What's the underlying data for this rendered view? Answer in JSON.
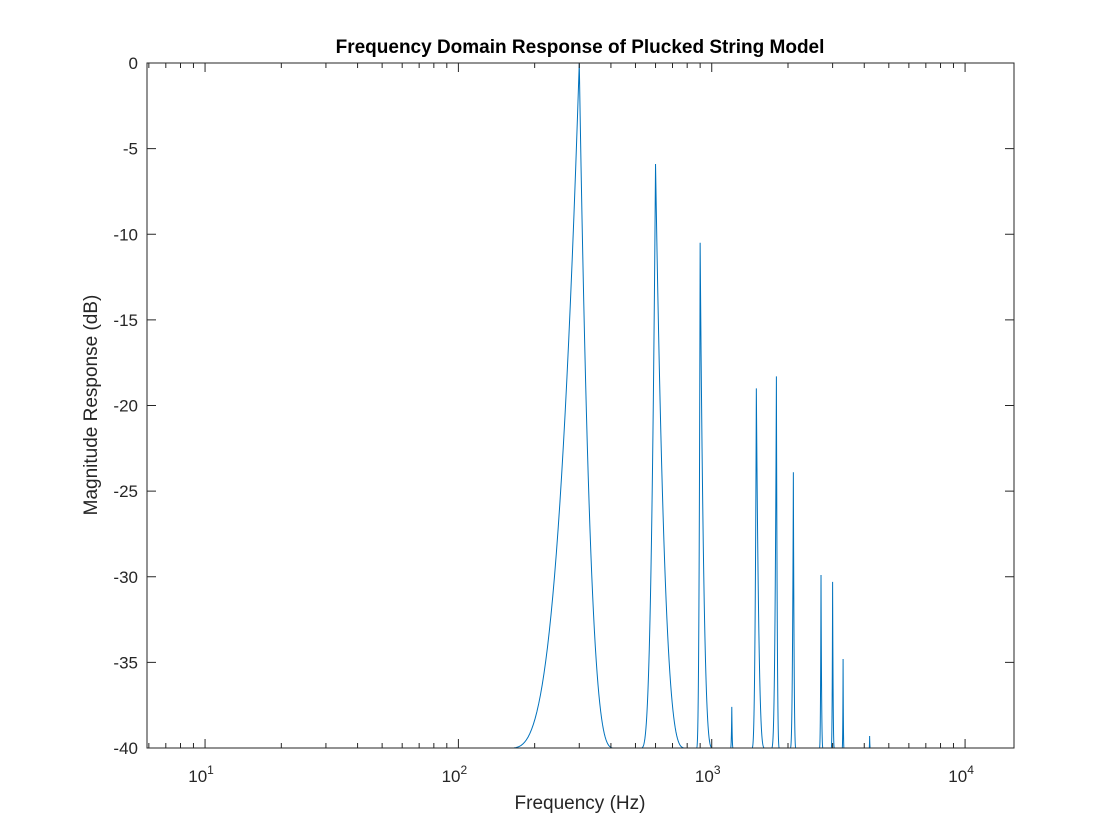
{
  "chart_data": {
    "type": "line",
    "title": "Frequency Domain Response of Plucked String Model",
    "xlabel": "Frequency (Hz)",
    "ylabel": "Magnitude Response (dB)",
    "xscale": "log",
    "xlim": [
      5.9,
      15600
    ],
    "ylim": [
      -40,
      0
    ],
    "grid": false,
    "legend": "none",
    "x_ticks": [
      {
        "value": 10,
        "base": "10",
        "exp": "1"
      },
      {
        "value": 100,
        "base": "10",
        "exp": "2"
      },
      {
        "value": 1000,
        "base": "10",
        "exp": "3"
      },
      {
        "value": 10000,
        "base": "10",
        "exp": "4"
      }
    ],
    "y_ticks": [
      {
        "value": 0,
        "label": "0"
      },
      {
        "value": -5,
        "label": "-5"
      },
      {
        "value": -10,
        "label": "-10"
      },
      {
        "value": -15,
        "label": "-15"
      },
      {
        "value": -20,
        "label": "-20"
      },
      {
        "value": -25,
        "label": "-25"
      },
      {
        "value": -30,
        "label": "-30"
      },
      {
        "value": -35,
        "label": "-35"
      },
      {
        "value": -40,
        "label": "-40"
      }
    ],
    "series": [
      {
        "color": "#0072BD",
        "peaks": [
          {
            "f": 300,
            "db": 0,
            "f_left": 158,
            "f_right": 415
          },
          {
            "f": 600,
            "db": -5.9,
            "f_left": 525,
            "f_right": 790
          },
          {
            "f": 900,
            "db": -10.5,
            "f_left": 870,
            "f_right": 1010
          },
          {
            "f": 1200,
            "db": -37.6,
            "f_left": 1185,
            "f_right": 1215
          },
          {
            "f": 1500,
            "db": -19.0,
            "f_left": 1440,
            "f_right": 1620
          },
          {
            "f": 1800,
            "db": -18.3,
            "f_left": 1720,
            "f_right": 1850
          },
          {
            "f": 2100,
            "db": -23.9,
            "f_left": 2040,
            "f_right": 2150
          },
          {
            "f": 2700,
            "db": -29.9,
            "f_left": 2660,
            "f_right": 2750
          },
          {
            "f": 3000,
            "db": -30.3,
            "f_left": 2960,
            "f_right": 3050
          },
          {
            "f": 3300,
            "db": -34.8,
            "f_left": 3270,
            "f_right": 3330
          },
          {
            "f": 4200,
            "db": -39.3,
            "f_left": 4180,
            "f_right": 4230
          }
        ]
      }
    ]
  }
}
